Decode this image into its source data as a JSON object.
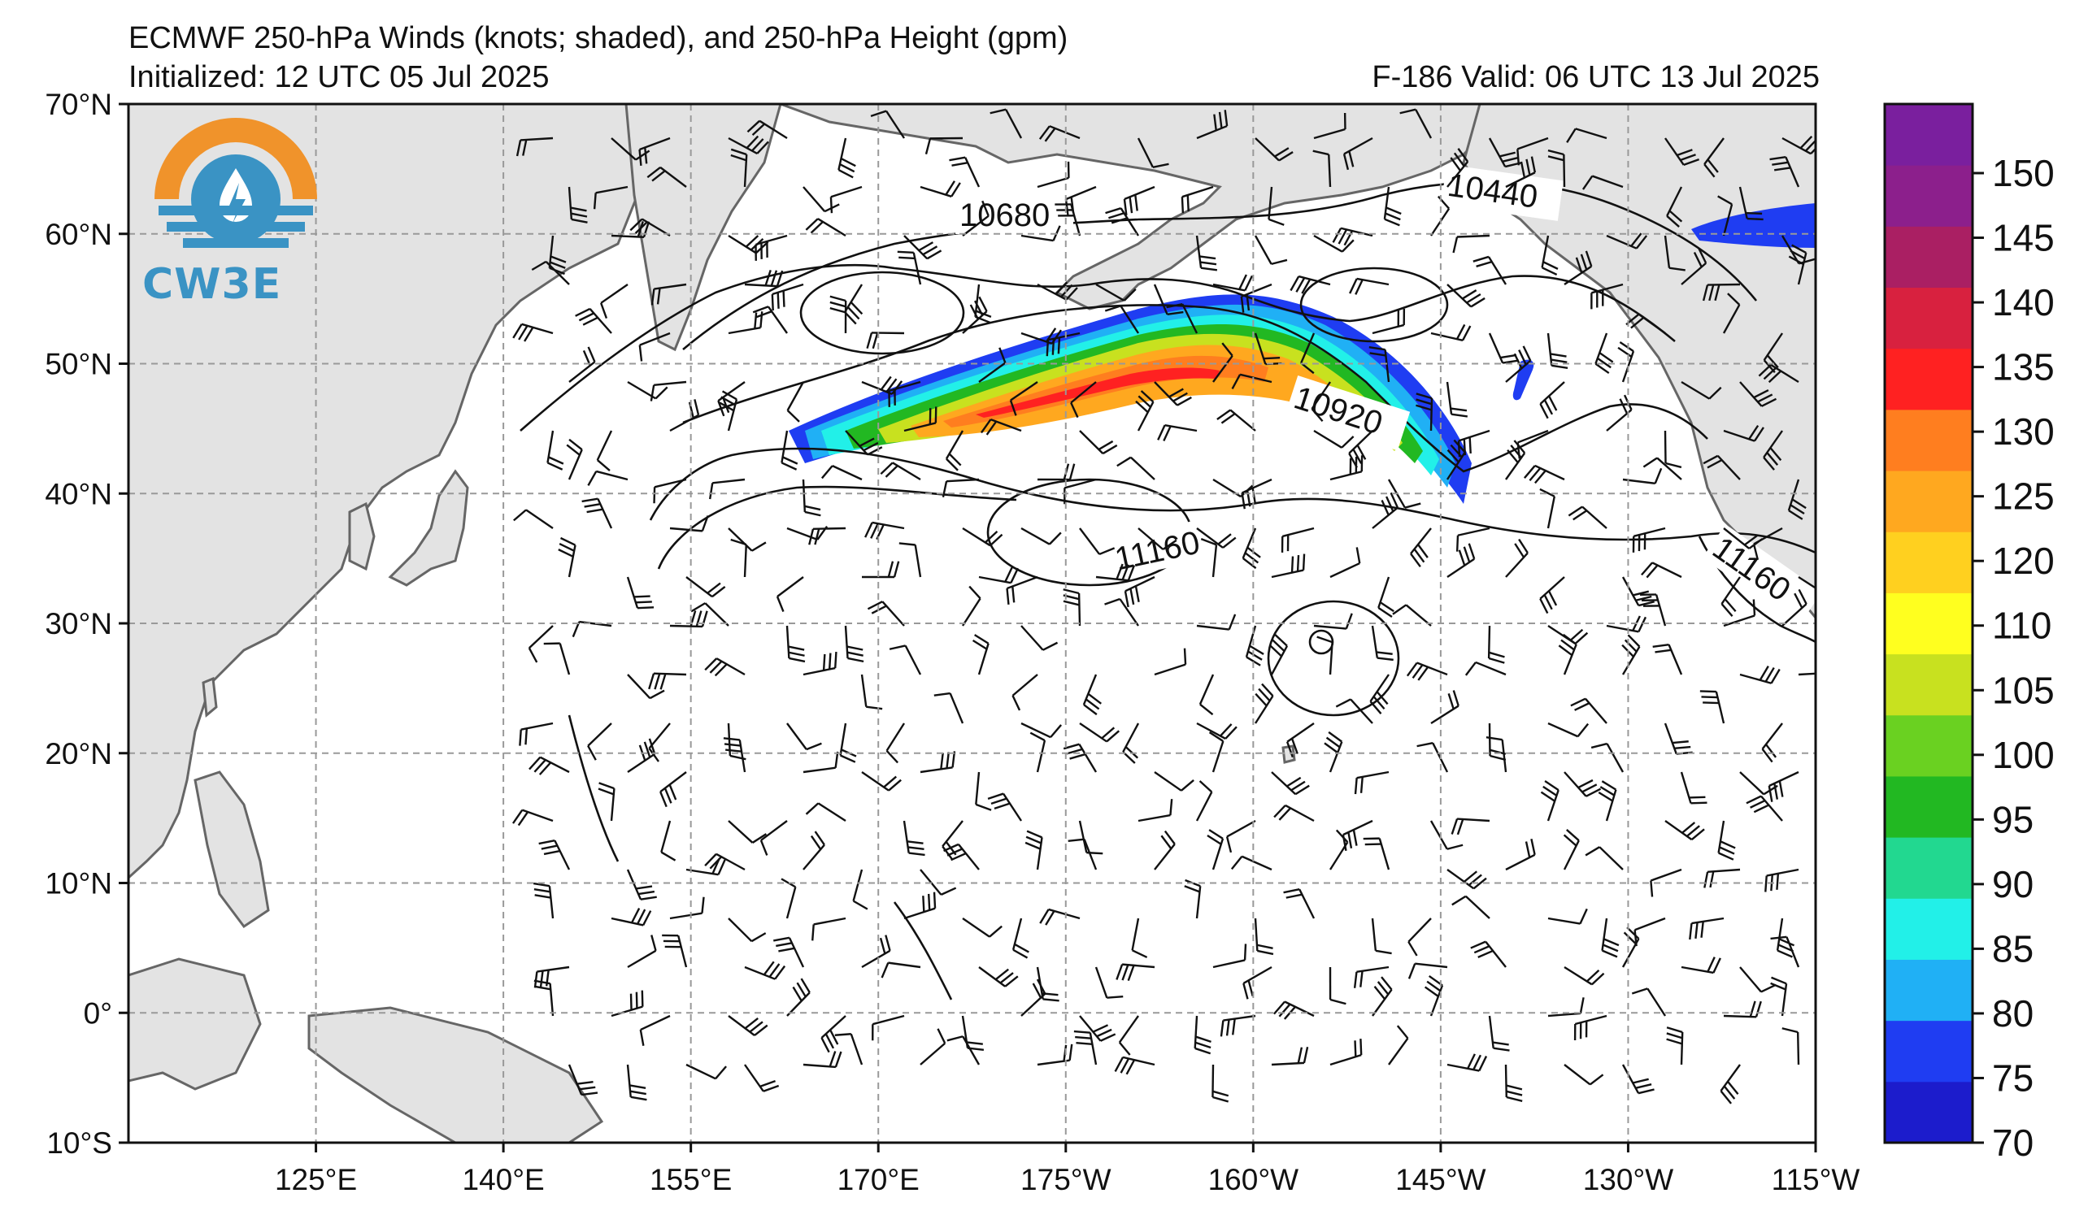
{
  "title": "ECMWF 250-hPa Winds (knots; shaded), and 250-hPa Height (gpm)",
  "initialized": "Initialized: 12 UTC 05 Jul 2025",
  "valid": "F-186  Valid: 06 UTC 13 Jul 2025",
  "logo": {
    "text": "CW3E",
    "colors": {
      "orange": "#f0932b",
      "blue": "#3a93c4"
    }
  },
  "map": {
    "lat_labels": [
      "70°N",
      "60°N",
      "50°N",
      "40°N",
      "30°N",
      "20°N",
      "10°N",
      "0°",
      "10°S"
    ],
    "lon_labels": [
      "125°E",
      "140°E",
      "155°E",
      "170°E",
      "175°W",
      "160°W",
      "145°W",
      "130°W",
      "115°W"
    ],
    "lat_range": [
      -10,
      70
    ],
    "lon_range": [
      110,
      245
    ],
    "land_color": "#e3e3e3",
    "coast_color": "#666666",
    "grid_color": "#999999"
  },
  "height_contours": [
    {
      "label": "10440",
      "value": 10440
    },
    {
      "label": "10680",
      "value": 10680
    },
    {
      "label": "10920",
      "value": 10920
    },
    {
      "label": "11160",
      "value": 11160
    },
    {
      "label": "11160",
      "value": 11160
    }
  ],
  "colorbar": {
    "ticks": [
      "150",
      "145",
      "140",
      "135",
      "130",
      "125",
      "120",
      "110",
      "105",
      "100",
      "95",
      "90",
      "85",
      "80",
      "75",
      "70"
    ],
    "colors": [
      "#1c1ccc",
      "#1f3df2",
      "#20b0f5",
      "#22f0e8",
      "#22d890",
      "#22b822",
      "#6ad121",
      "#c8e11f",
      "#ffff1f",
      "#ffd01f",
      "#ffa81f",
      "#ff7e1f",
      "#ff2121",
      "#d8213f",
      "#aa1f63",
      "#8c1f8c",
      "#7a1f9e"
    ]
  }
}
